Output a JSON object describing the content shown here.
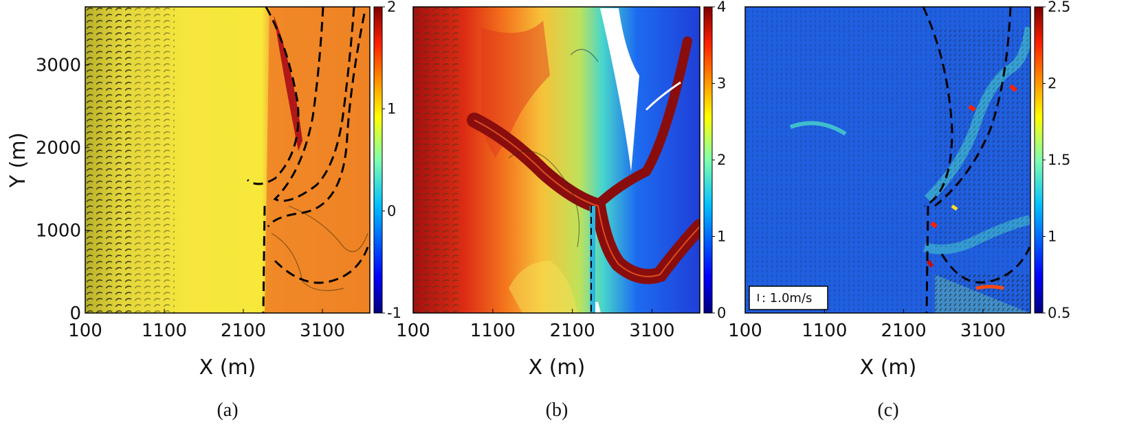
{
  "chart_data": [
    {
      "type": "heatmap",
      "caption": "(a)",
      "xlabel": "X (m)",
      "ylabel": "Y (m)",
      "x_ticks": [
        100,
        1100,
        2100,
        3100
      ],
      "y_ticks": [
        0,
        1000,
        2000,
        3000
      ],
      "xlim": [
        100,
        3700
      ],
      "ylim": [
        0,
        3700
      ],
      "colorbar": {
        "ticks": [
          2,
          1,
          0,
          -1
        ],
        "range": [
          -1,
          2
        ]
      },
      "colormap": "jet",
      "overlay": "contours, dashed boundary lines"
    },
    {
      "type": "heatmap",
      "caption": "(b)",
      "xlabel": "X (m)",
      "x_ticks": [
        100,
        1100,
        2100,
        3100
      ],
      "xlim": [
        100,
        3700
      ],
      "ylim": [
        0,
        3700
      ],
      "colorbar": {
        "ticks": [
          4,
          3,
          2,
          1,
          0
        ],
        "range": [
          0,
          4
        ]
      },
      "colormap": "jet",
      "overlay": "contours, channel network"
    },
    {
      "type": "heatmap",
      "caption": "(c)",
      "xlabel": "X (m)",
      "x_ticks": [
        100,
        1100,
        2100,
        3100
      ],
      "xlim": [
        100,
        3700
      ],
      "ylim": [
        0,
        3700
      ],
      "colorbar": {
        "ticks": [
          2.5,
          2,
          1.5,
          1,
          0.5
        ],
        "range": [
          0.5,
          2.5
        ]
      },
      "colormap": "jet",
      "overlay": "velocity vectors, dashed boundary lines",
      "reference_vector_label": ": 1.0m/s"
    }
  ]
}
